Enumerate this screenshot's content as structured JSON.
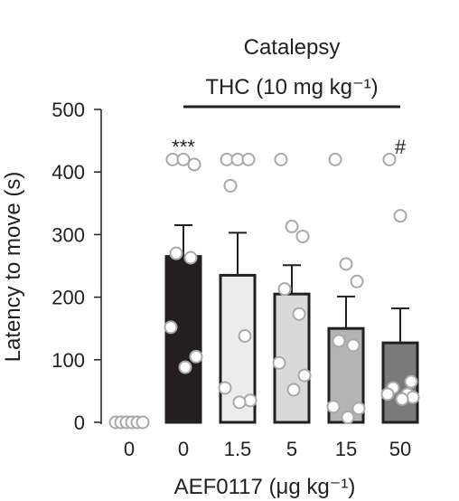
{
  "chart_data": {
    "type": "bar",
    "title": "Catalepsy",
    "treatment_label": "THC (10 mg kg⁻¹)",
    "xlabel": "AEF0117 (μg kg⁻¹)",
    "ylabel": "Latency to move (s)",
    "ylim": [
      0,
      500
    ],
    "yticks": [
      0,
      100,
      200,
      300,
      400,
      500
    ],
    "categories": [
      "0",
      "0",
      "1.5",
      "5",
      "15",
      "50"
    ],
    "values": [
      0,
      265,
      235,
      205,
      150,
      127
    ],
    "errors": [
      0,
      50,
      68,
      46,
      51,
      55
    ],
    "significance": [
      "",
      "***",
      "",
      "",
      "",
      "#"
    ],
    "bar_colors": [
      "#ffffff",
      "#231f20",
      "#ececec",
      "#d9d9d9",
      "#b4b4b4",
      "#7a7a7a"
    ],
    "points": [
      [
        0,
        0,
        0,
        0,
        0,
        0
      ],
      [
        420,
        420,
        412,
        270,
        263,
        152,
        105,
        88
      ],
      [
        420,
        420,
        420,
        378,
        138,
        55,
        35,
        32
      ],
      [
        420,
        313,
        297,
        213,
        173,
        95,
        75,
        52
      ],
      [
        420,
        253,
        225,
        130,
        123,
        25,
        22,
        8
      ],
      [
        420,
        330,
        65,
        55,
        45,
        45,
        40,
        37
      ]
    ]
  }
}
